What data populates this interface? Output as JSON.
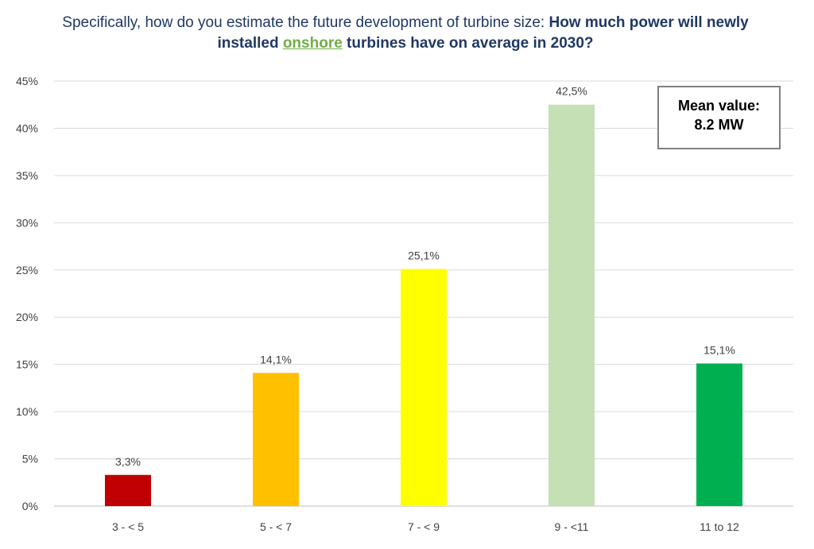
{
  "title": {
    "part1": "Specifically, how do you estimate the future development of turbine size: ",
    "part2": "How much power will newly installed ",
    "highlight": "onshore",
    "part3": " turbines have on average in 2030?"
  },
  "mean_box": {
    "label": "Mean value:",
    "value": "8.2 MW"
  },
  "chart_data": {
    "type": "bar",
    "title": "Specifically, how do you estimate the future development of turbine size: How much power will newly installed onshore turbines have on average in 2030?",
    "categories": [
      "3 - < 5",
      "5 - < 7",
      "7 - < 9",
      "9 - <11",
      "11 to 12"
    ],
    "values": [
      3.3,
      14.1,
      25.1,
      42.5,
      15.1
    ],
    "data_labels": [
      "3,3%",
      "14,1%",
      "25,1%",
      "42,5%",
      "15,1%"
    ],
    "colors": [
      "#c00000",
      "#ffc000",
      "#ffff00",
      "#c5e0b4",
      "#00b050"
    ],
    "yticks": [
      0,
      5,
      10,
      15,
      20,
      25,
      30,
      35,
      40,
      45
    ],
    "ytick_labels": [
      "0%",
      "5%",
      "10%",
      "15%",
      "20%",
      "25%",
      "30%",
      "35%",
      "40%",
      "45%"
    ],
    "ylim": [
      0,
      45
    ],
    "xlabel": "",
    "ylabel": "",
    "grid": true,
    "annotation": "Mean value: 8.2 MW"
  }
}
